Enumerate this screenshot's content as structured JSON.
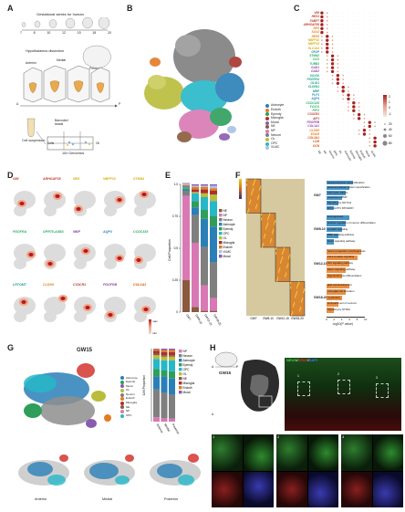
{
  "panels": {
    "A": "A",
    "B": "B",
    "C": "C",
    "D": "D",
    "E": "E",
    "F": "F",
    "G": "G",
    "H": "H"
  },
  "panelA": {
    "timeline_title": "Gestational weeks for human",
    "weeks": [
      "7",
      "8",
      "10",
      "12",
      "15",
      "18",
      "20"
    ],
    "dissection_title": "Hypothalamus dissection",
    "anterior": "Anterior",
    "medial": "Medial",
    "posterior": "Posterior",
    "axis_a": "A",
    "axis_p": "P",
    "cell_suspension": "Cell suspension",
    "barcoded": "Barcoded\nbeads",
    "cells": "Cells",
    "oil": "Oil",
    "genomics": "10x Genomics"
  },
  "panelB": {
    "legend": [
      {
        "label": "Astrocyte",
        "color": "#2a7fb8"
      },
      {
        "label": "Endoth",
        "color": "#e37b25"
      },
      {
        "label": "Ependy",
        "color": "#2e9e5a"
      },
      {
        "label": "Microglia",
        "color": "#a8322c"
      },
      {
        "label": "Mural",
        "color": "#8a5cb0"
      },
      {
        "label": "NE",
        "color": "#8b5a3c"
      },
      {
        "label": "NP",
        "color": "#d978b4"
      },
      {
        "label": "Neuron",
        "color": "#7f7f7f"
      },
      {
        "label": "OL",
        "color": "#b9bd3b"
      },
      {
        "label": "OPC",
        "color": "#26b7c8"
      },
      {
        "label": "VLMC",
        "color": "#a7c3e6"
      }
    ]
  },
  "panelC": {
    "genes": [
      "VIM",
      "HES1",
      "FABP7",
      "ARHGAP28",
      "NES",
      "SOX2",
      "HES5",
      "NBPF10",
      "NBPF15",
      "SLC1A3",
      "GFAP",
      "STMN2",
      "DCX",
      "TUBB3",
      "GAD1",
      "GAD2",
      "SOX10",
      "PDGFRA",
      "OLIG1",
      "CLDN11",
      "MBP",
      "PLP1",
      "AQP4",
      "CCDC153",
      "FOXJ1",
      "PIFO",
      "CX3CR1",
      "AIF1",
      "PDGFRB",
      "COL1A1",
      "CLDN5",
      "ESAM",
      "COL3A1",
      "LUM",
      "DCN"
    ],
    "gene_colors": [
      "#c0392b",
      "#c0392b",
      "#c0392b",
      "#c0392b",
      "#e67e22",
      "#e67e22",
      "#e67e22",
      "#d4ac0d",
      "#d4ac0d",
      "#d4ac0d",
      "#2e86c1",
      "#27ae60",
      "#27ae60",
      "#27ae60",
      "#8e44ad",
      "#8e44ad",
      "#16a085",
      "#16a085",
      "#16a085",
      "#16a085",
      "#16a085",
      "#2e86c1",
      "#2e86c1",
      "#27ae60",
      "#27ae60",
      "#27ae60",
      "#c0392b",
      "#c0392b",
      "#8e44ad",
      "#8e44ad",
      "#e67e22",
      "#e67e22",
      "#d35400",
      "#d35400",
      "#d35400"
    ],
    "columns": [
      "NE",
      "NP",
      "Neuron",
      "OPC",
      "OL",
      "Astrocyte",
      "Ependy",
      "Microglia",
      "Endoth",
      "Mural",
      "VLMC"
    ],
    "scale_title": "",
    "scale_ticks": [
      "2",
      "1",
      "0",
      "-1"
    ],
    "size_ticks": [
      "20",
      "40",
      "60",
      "80"
    ]
  },
  "panelD": {
    "genes": [
      {
        "name": "VIM",
        "color": "#c0392b"
      },
      {
        "name": "ARHGAP28",
        "color": "#c0392b"
      },
      {
        "name": "NES",
        "color": "#d4ac0d"
      },
      {
        "name": "NBPF10",
        "color": "#d4ac0d"
      },
      {
        "name": "STMN2",
        "color": "#d4ac0d"
      },
      {
        "name": "PDGFRA",
        "color": "#27ae60"
      },
      {
        "name": "GPR75-ASB3",
        "color": "#27ae60"
      },
      {
        "name": "MBP",
        "color": "#8e44ad"
      },
      {
        "name": "AQP4",
        "color": "#2e86c1"
      },
      {
        "name": "CCDC153",
        "color": "#27ae60"
      },
      {
        "name": "LRTOMT",
        "color": "#16a085"
      },
      {
        "name": "CLDN5",
        "color": "#e67e22"
      },
      {
        "name": "CX3CR1",
        "color": "#c0392b"
      },
      {
        "name": "PDGFRB",
        "color": "#8e44ad"
      },
      {
        "name": "COL1A1",
        "color": "#d35400"
      }
    ],
    "max": "max",
    "min": "min"
  },
  "panelE": {
    "ylabel": "Cell Proportion",
    "yticks": [
      "0",
      "0.25",
      "0.5",
      "0.75",
      "1.0"
    ],
    "legend": [
      {
        "label": "NE",
        "color": "#8b5a3c"
      },
      {
        "label": "NP",
        "color": "#d978b4"
      },
      {
        "label": "Neuron",
        "color": "#7f7f7f"
      },
      {
        "label": "Astrocyte",
        "color": "#2a7fb8"
      },
      {
        "label": "Ependy",
        "color": "#2e9e5a"
      },
      {
        "label": "OPC",
        "color": "#26b7c8"
      },
      {
        "label": "OL",
        "color": "#b9bd3b"
      },
      {
        "label": "Microglia",
        "color": "#a8322c"
      },
      {
        "label": "Endoth",
        "color": "#e37b25"
      },
      {
        "label": "VLMC",
        "color": "#a7c3e6"
      },
      {
        "label": "Mural",
        "color": "#8a5cb0"
      }
    ]
  },
  "chart_data": [
    {
      "type": "bar",
      "stacked": true,
      "categories": [
        "GW7",
        "GW8-10",
        "GW12-15",
        "GW18-20"
      ],
      "series": [
        {
          "name": "NE",
          "values": [
            0.25,
            0.04,
            0.01,
            0.01
          ]
        },
        {
          "name": "NP",
          "values": [
            0.66,
            0.5,
            0.2,
            0.1
          ]
        },
        {
          "name": "Neuron",
          "values": [
            0.04,
            0.22,
            0.3,
            0.28
          ]
        },
        {
          "name": "Astrocyte",
          "values": [
            0.01,
            0.06,
            0.22,
            0.28
          ]
        },
        {
          "name": "Ependy",
          "values": [
            0.01,
            0.05,
            0.07,
            0.08
          ]
        },
        {
          "name": "OPC",
          "values": [
            0.01,
            0.06,
            0.1,
            0.12
          ]
        },
        {
          "name": "OL",
          "values": [
            0.0,
            0.01,
            0.03,
            0.05
          ]
        },
        {
          "name": "Microglia",
          "values": [
            0.005,
            0.02,
            0.03,
            0.03
          ]
        },
        {
          "name": "Endoth",
          "values": [
            0.01,
            0.02,
            0.02,
            0.02
          ]
        },
        {
          "name": "VLMC",
          "values": [
            0.01,
            0.01,
            0.01,
            0.02
          ]
        },
        {
          "name": "Mural",
          "values": [
            0.005,
            0.01,
            0.01,
            0.01
          ]
        }
      ],
      "ylabel": "Cell Proportion",
      "ylim": [
        0,
        1
      ]
    },
    {
      "type": "bar",
      "stacked": true,
      "categories": [
        "Anterior",
        "Medial",
        "Posterior"
      ],
      "series": [
        {
          "name": "NP",
          "values": [
            0.06,
            0.05,
            0.04
          ]
        },
        {
          "name": "Neuron",
          "values": [
            0.38,
            0.35,
            0.33
          ]
        },
        {
          "name": "Astrocyte",
          "values": [
            0.18,
            0.22,
            0.22
          ]
        },
        {
          "name": "Ependy",
          "values": [
            0.1,
            0.08,
            0.1
          ]
        },
        {
          "name": "OPC",
          "values": [
            0.14,
            0.14,
            0.15
          ]
        },
        {
          "name": "OL",
          "values": [
            0.05,
            0.05,
            0.05
          ]
        },
        {
          "name": "NE",
          "values": [
            0.02,
            0.02,
            0.02
          ]
        },
        {
          "name": "Microglia",
          "values": [
            0.04,
            0.04,
            0.04
          ]
        },
        {
          "name": "Endoth",
          "values": [
            0.02,
            0.03,
            0.03
          ]
        },
        {
          "name": "Mural",
          "values": [
            0.01,
            0.02,
            0.02
          ]
        }
      ],
      "ylabel": "Cell Proportion",
      "ylim": [
        0,
        1
      ]
    }
  ],
  "panelF": {
    "columns": [
      "GW7",
      "GW8-10",
      "GW12-15",
      "GW18-20"
    ],
    "xlabel": "-log10(P value)",
    "xticks": [
      "0",
      "2",
      "4",
      "6",
      "8",
      "10"
    ],
    "groups": [
      {
        "name": "GW7",
        "color": "#2a7fb8",
        "terms": [
          {
            "t": "neural precursor cell proliferation",
            "v": 7
          },
          {
            "t": "anterior/posterior pattern specification",
            "v": 6
          },
          {
            "t": "Cell Cycle, Mitotic",
            "v": 5
          },
          {
            "t": "response to BMP",
            "v": 4
          },
          {
            "t": "Signaling by NOTCH",
            "v": 3
          },
          {
            "t": "MYC ACTIV PATHWAY",
            "v": 2
          }
        ]
      },
      {
        "name": "GW8-10",
        "color": "#2a7fb8",
        "terms": [
          {
            "t": "axonogenesis",
            "v": 6
          },
          {
            "t": "positive regulation of neuron differentiation",
            "v": 5
          },
          {
            "t": "synaptic signaling",
            "v": 4
          },
          {
            "t": "BMP signaling pathway",
            "v": 3
          },
          {
            "t": "Notch signaling pathway",
            "v": 2
          }
        ]
      },
      {
        "name": "GW12-15",
        "color": "#e37b25",
        "terms": [
          {
            "t": "neuron projection morphogenesis",
            "v": 9
          },
          {
            "t": "trans-synaptic signaling",
            "v": 8
          },
          {
            "t": "Wnt signaling pathway",
            "v": 6
          },
          {
            "t": "Hippo signaling pathway",
            "v": 5
          },
          {
            "t": "oligodendrocyte differentiation",
            "v": 4
          }
        ]
      },
      {
        "name": "GW18-20",
        "color": "#e37b25",
        "terms": [
          {
            "t": "glial cell development",
            "v": 6
          },
          {
            "t": "microglial cell activation",
            "v": 5
          },
          {
            "t": "myelination",
            "v": 4
          },
          {
            "t": "ensheathment of neurons",
            "v": 3
          },
          {
            "t": "Signaling by NTRKs",
            "v": 2
          }
        ]
      }
    ]
  },
  "panelG": {
    "title": "GW15",
    "legend": [
      {
        "label": "Astrocyte",
        "color": "#2a7fb8"
      },
      {
        "label": "Ependy",
        "color": "#2e9e5a"
      },
      {
        "label": "Mural",
        "color": "#8a5cb0"
      },
      {
        "label": "OL",
        "color": "#b9bd3b"
      },
      {
        "label": "Neuron",
        "color": "#7f7f7f"
      },
      {
        "label": "Endoth",
        "color": "#e37b25"
      },
      {
        "label": "Microglia",
        "color": "#a8322c"
      },
      {
        "label": "NE",
        "color": "#8b5a3c"
      },
      {
        "label": "NP",
        "color": "#d978b4"
      },
      {
        "label": "OPC",
        "color": "#26b7c8"
      }
    ],
    "bar_legend": [
      {
        "label": "NP",
        "color": "#d978b4"
      },
      {
        "label": "Neuron",
        "color": "#7f7f7f"
      },
      {
        "label": "Astrocyte",
        "color": "#2a7fb8"
      },
      {
        "label": "Ependy",
        "color": "#2e9e5a"
      },
      {
        "label": "OPC",
        "color": "#26b7c8"
      },
      {
        "label": "OL",
        "color": "#b9bd3b"
      },
      {
        "label": "NE",
        "color": "#8b5a3c"
      },
      {
        "label": "Microglia",
        "color": "#a8322c"
      },
      {
        "label": "Endoth",
        "color": "#e37b25"
      },
      {
        "label": "Mural",
        "color": "#8a5cb0"
      }
    ],
    "ylabel": "Cell Proportion",
    "regions": [
      "Anterior",
      "Medial",
      "Posterior"
    ]
  },
  "panelH": {
    "gw": "GW15",
    "axis_a": "A",
    "axis_p": "P",
    "stain_neun": "NEUN",
    "stain_sep1": "/",
    "stain_gfap": "GFAP",
    "stain_sep2": "/",
    "stain_dapi": "DAPI",
    "insets": [
      "1",
      "2",
      "3"
    ]
  }
}
